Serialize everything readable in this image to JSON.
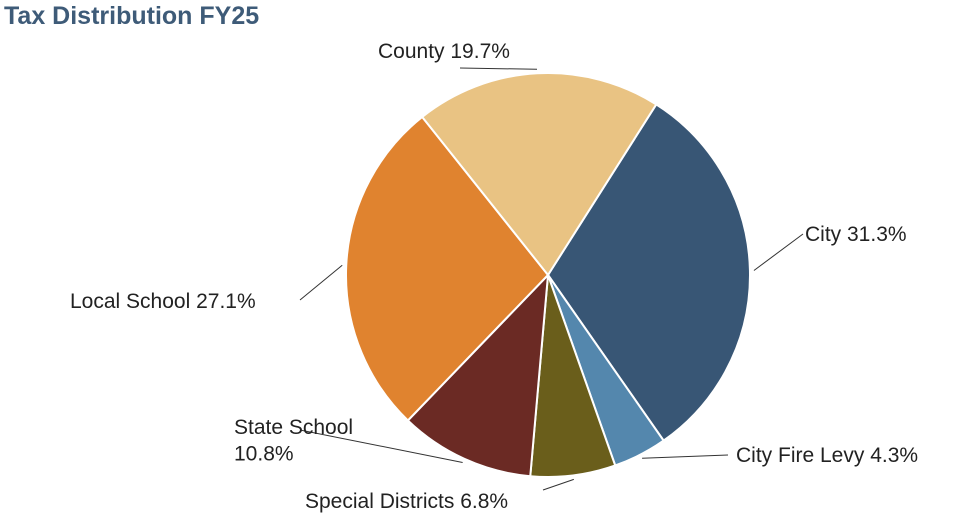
{
  "chart_data": {
    "type": "pie",
    "title": "Tax Distribution FY25",
    "slices": [
      {
        "label": "City  31.3%",
        "name": "City",
        "value": 31.3,
        "color": "#385675"
      },
      {
        "label": "City Fire Levy 4.3%",
        "name": "City Fire Levy",
        "value": 4.3,
        "color": "#5487ad"
      },
      {
        "label": "Special Districts 6.8%",
        "name": "Special Districts",
        "value": 6.8,
        "color": "#6a5e1b"
      },
      {
        "label": "State School\n10.8%",
        "name": "State School",
        "value": 10.8,
        "color": "#6b2a24"
      },
      {
        "label": "Local School 27.1%",
        "name": "Local School",
        "value": 27.1,
        "color": "#e0832f"
      },
      {
        "label": "County 19.7%",
        "name": "County",
        "value": 19.7,
        "color": "#e9c383"
      }
    ],
    "start_angle_deg": 32.4,
    "direction": "clockwise"
  }
}
